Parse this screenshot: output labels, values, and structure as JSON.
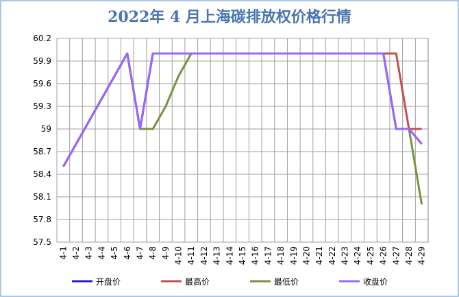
{
  "chart_data": {
    "type": "line",
    "title": "2022年 4 月上海碳排放权价格行情",
    "categories": [
      "4-1",
      "4-2",
      "4-3",
      "4-4",
      "4-5",
      "4-6",
      "4-7",
      "4-8",
      "4-9",
      "4-10",
      "4-11",
      "4-12",
      "4-13",
      "4-14",
      "4-15",
      "4-16",
      "4-17",
      "4-18",
      "4-19",
      "4-20",
      "4-21",
      "4-22",
      "4-23",
      "4-24",
      "4-25",
      "4-26",
      "4-27",
      "4-28",
      "4-29"
    ],
    "series": [
      {
        "name": "开盘价",
        "color": "#1f1fc8",
        "values": [
          58.5,
          58.8,
          59.1,
          59.4,
          59.7,
          60.0,
          59.0,
          60.0,
          60.0,
          60.0,
          60.0,
          60.0,
          60.0,
          60.0,
          60.0,
          60.0,
          60.0,
          60.0,
          60.0,
          60.0,
          60.0,
          60.0,
          60.0,
          60.0,
          60.0,
          60.0,
          59.0,
          59.0,
          58.8
        ]
      },
      {
        "name": "最高价",
        "color": "#c0504d",
        "values": [
          58.5,
          58.8,
          59.1,
          59.4,
          59.7,
          60.0,
          59.0,
          60.0,
          60.0,
          60.0,
          60.0,
          60.0,
          60.0,
          60.0,
          60.0,
          60.0,
          60.0,
          60.0,
          60.0,
          60.0,
          60.0,
          60.0,
          60.0,
          60.0,
          60.0,
          60.0,
          60.0,
          59.0,
          59.0
        ]
      },
      {
        "name": "最低价",
        "color": "#77933c",
        "values": [
          58.5,
          58.8,
          59.1,
          59.4,
          59.7,
          60.0,
          59.0,
          59.0,
          59.3,
          59.7,
          60.0,
          60.0,
          60.0,
          60.0,
          60.0,
          60.0,
          60.0,
          60.0,
          60.0,
          60.0,
          60.0,
          60.0,
          60.0,
          60.0,
          60.0,
          60.0,
          59.0,
          59.0,
          58.0
        ]
      },
      {
        "name": "收盘价",
        "color": "#9966ff",
        "values": [
          58.5,
          58.8,
          59.1,
          59.4,
          59.7,
          60.0,
          59.0,
          60.0,
          60.0,
          60.0,
          60.0,
          60.0,
          60.0,
          60.0,
          60.0,
          60.0,
          60.0,
          60.0,
          60.0,
          60.0,
          60.0,
          60.0,
          60.0,
          60.0,
          60.0,
          60.0,
          59.0,
          59.0,
          58.8
        ]
      }
    ],
    "ylim": [
      57.5,
      60.2
    ],
    "yticks": [
      57.5,
      57.8,
      58.1,
      58.4,
      58.7,
      59,
      59.3,
      59.6,
      59.9,
      60.2
    ],
    "grid": true
  }
}
